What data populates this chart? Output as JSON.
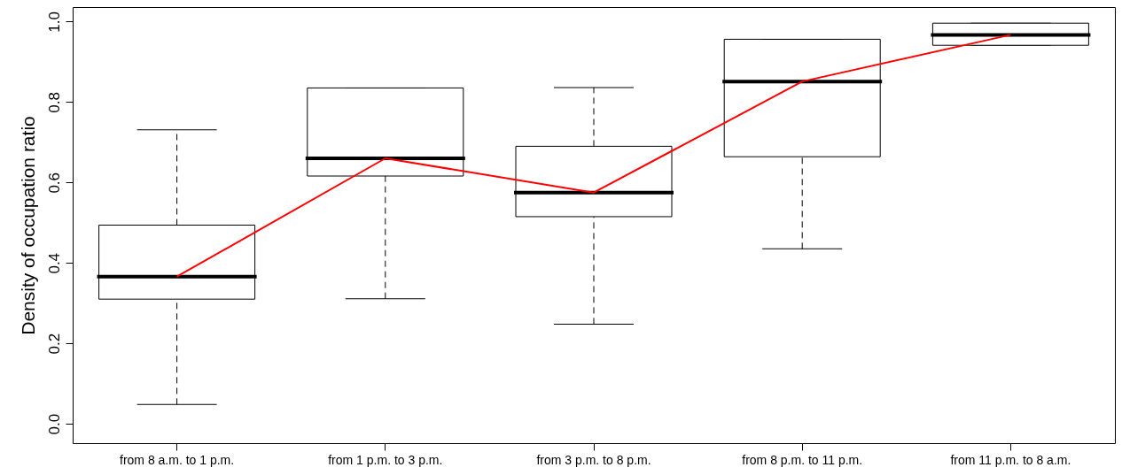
{
  "chart_data": {
    "type": "box",
    "ylabel": "Density of occupation ratio",
    "categories": [
      "from 8 a.m. to 1 p.m.",
      "from 1 p.m. to 3 p.m.",
      "from 3 p.m. to 8 p.m.",
      "from 8 p.m. to 11 p.m.",
      "from 11 p.m. to 8 a.m."
    ],
    "boxes": [
      {
        "low": 0.048,
        "q1": 0.31,
        "median": 0.366,
        "q3": 0.494,
        "high": 0.731
      },
      {
        "low": 0.311,
        "q1": 0.616,
        "median": 0.66,
        "q3": 0.835,
        "high": 0.835
      },
      {
        "low": 0.248,
        "q1": 0.515,
        "median": 0.575,
        "q3": 0.69,
        "high": 0.836
      },
      {
        "low": 0.435,
        "q1": 0.664,
        "median": 0.851,
        "q3": 0.956,
        "high": 0.956
      },
      {
        "low": 0.941,
        "q1": 0.941,
        "median": 0.967,
        "q3": 0.996,
        "high": 0.996
      }
    ],
    "series": [
      {
        "type": "line",
        "color": "#ff0000",
        "values": [
          0.366,
          0.66,
          0.575,
          0.851,
          0.967
        ]
      }
    ],
    "ylim": [
      -0.048,
      1.036
    ],
    "yticks": [
      {
        "value": 0,
        "label": "0.0"
      },
      0.2,
      0.4,
      0.6,
      0.8,
      {
        "value": 1,
        "label": "1.0"
      }
    ],
    "grid": false
  }
}
